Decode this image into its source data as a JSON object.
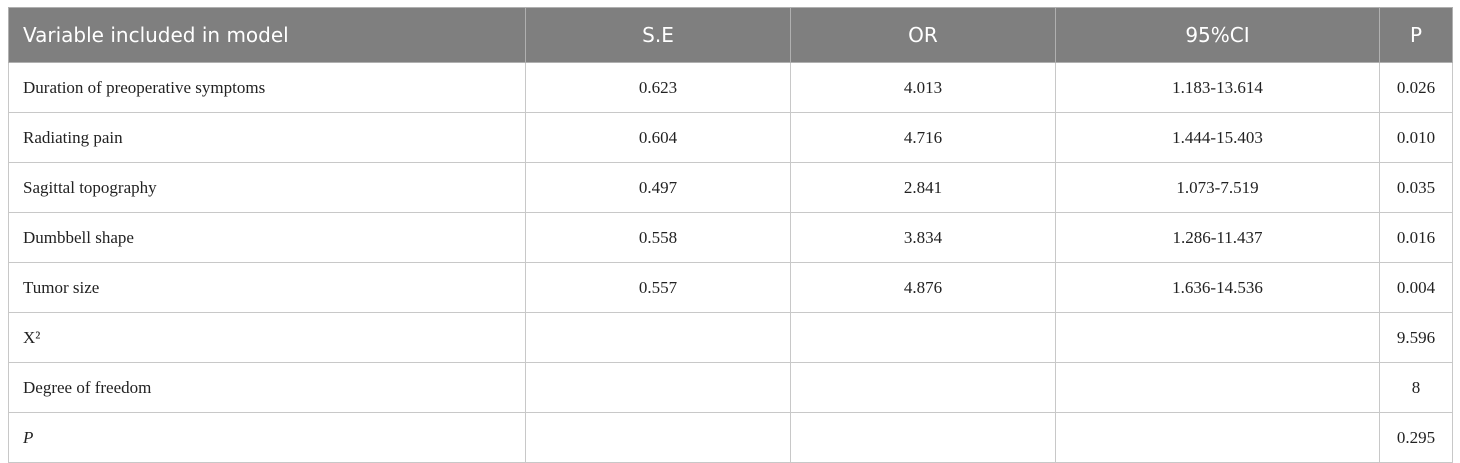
{
  "table": {
    "header": [
      "Variable included in model",
      "S.E",
      "OR",
      "95%CI",
      "P"
    ],
    "rows": [
      [
        "Duration of preoperative symptoms",
        "0.623",
        "4.013",
        "1.183-13.614",
        "0.026"
      ],
      [
        "Radiating pain",
        "0.604",
        "4.716",
        "1.444-15.403",
        "0.010"
      ],
      [
        "Sagittal topography",
        "0.497",
        "2.841",
        "1.073-7.519",
        "0.035"
      ],
      [
        "Dumbbell shape",
        "0.558",
        "3.834",
        "1.286-11.437",
        "0.016"
      ],
      [
        "Tumor size",
        "0.557",
        "4.876",
        "1.636-14.536",
        "0.004"
      ],
      [
        "X²",
        null,
        null,
        null,
        "9.596"
      ],
      [
        "Degree of freedom",
        null,
        null,
        null,
        "8"
      ],
      [
        "P",
        null,
        null,
        null,
        "0.295"
      ]
    ]
  }
}
